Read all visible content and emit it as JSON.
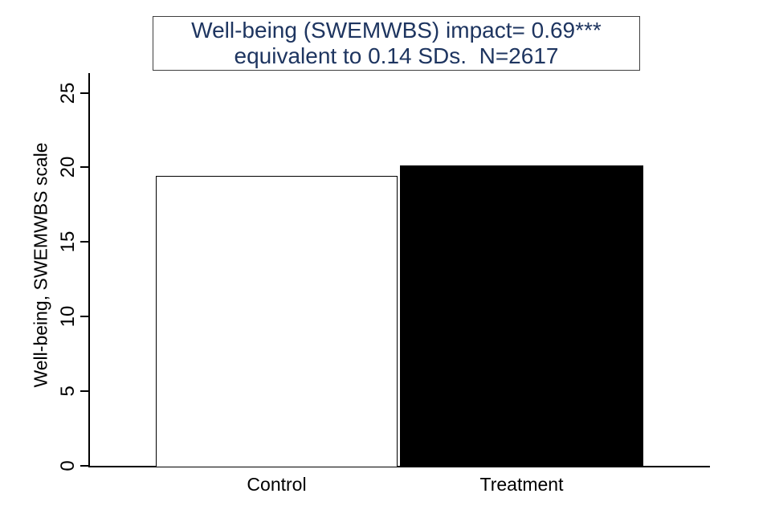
{
  "chart_data": {
    "type": "bar",
    "title_lines": [
      "Well-being (SWEMWBS) impact= 0.69***",
      "equivalent to 0.14 SDs.  N=2617"
    ],
    "title_color": "#1e3560",
    "categories": [
      "Control",
      "Treatment"
    ],
    "values": [
      19.45,
      20.14
    ],
    "bar_fills": [
      "#ffffff",
      "#000000"
    ],
    "bar_edge_color": "#000000",
    "ylabel": "Well-being, SWEMWBS scale",
    "xlabel": "",
    "yticks": [
      0,
      5,
      10,
      15,
      20,
      25
    ],
    "ylim": [
      0,
      25
    ],
    "grid": false,
    "legend_position": "none",
    "axis_color": "#000000",
    "background_color": "#ffffff",
    "annotations": {
      "impact": "0.69***",
      "sd_equivalent": "0.14 SDs.",
      "sample_size": "N=2617"
    }
  }
}
